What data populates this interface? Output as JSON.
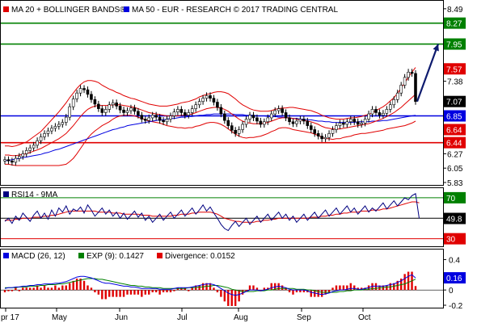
{
  "chart_data": [
    {
      "panel": "price",
      "type": "candlestick",
      "legend": [
        {
          "label": "MA 20 + BOLLINGER BANDS®",
          "color": "#e00000"
        },
        {
          "label": "MA 50 - EUR - RESEARCH © 2017 TRADING CENTRAL",
          "color": "#0000e0"
        }
      ],
      "x_ticks": [
        "pr 17",
        "May",
        "Jun",
        "Jul",
        "Aug",
        "Sep",
        "Oct"
      ],
      "ylim": [
        5.83,
        8.55
      ],
      "y_ticks": [
        "8.49",
        "7.38",
        "6.27",
        "6.05",
        "5.83"
      ],
      "levels": [
        {
          "label": "8.27",
          "value": 8.27,
          "color": "#008000"
        },
        {
          "label": "7.95",
          "value": 7.95,
          "color": "#008000"
        },
        {
          "label": "7.57",
          "value": 7.57,
          "color": "#e00000"
        },
        {
          "label": "7.07",
          "value": 7.07,
          "color": "#000000"
        },
        {
          "label": "6.85",
          "value": 6.85,
          "color": "#0000e0"
        },
        {
          "label": "6.64",
          "value": 6.64,
          "color": "#e00000"
        },
        {
          "label": "6.44",
          "value": 6.44,
          "color": "#e00000"
        }
      ],
      "horizontal_lines": [
        {
          "value": 8.27,
          "color": "#008000"
        },
        {
          "value": 7.95,
          "color": "#008000"
        },
        {
          "value": 6.85,
          "color": "#0000e0"
        },
        {
          "value": 6.44,
          "color": "#e00000"
        }
      ],
      "close": [
        6.18,
        6.16,
        6.14,
        6.2,
        6.23,
        6.27,
        6.32,
        6.36,
        6.4,
        6.47,
        6.53,
        6.58,
        6.62,
        6.66,
        6.69,
        6.72,
        6.75,
        6.83,
        6.99,
        7.11,
        7.2,
        7.27,
        7.25,
        7.18,
        7.1,
        7.03,
        6.96,
        6.9,
        6.95,
        7.02,
        7.05,
        7.0,
        6.94,
        6.9,
        6.93,
        6.97,
        6.92,
        6.86,
        6.8,
        6.78,
        6.82,
        6.86,
        6.83,
        6.78,
        6.76,
        6.8,
        6.85,
        6.91,
        6.95,
        6.9,
        6.86,
        6.9,
        6.96,
        7.02,
        7.07,
        7.12,
        7.16,
        7.12,
        7.06,
        6.98,
        6.88,
        6.78,
        6.7,
        6.63,
        6.58,
        6.64,
        6.72,
        6.8,
        6.86,
        6.82,
        6.77,
        6.72,
        6.76,
        6.82,
        6.88,
        6.93,
        6.96,
        6.9,
        6.82,
        6.76,
        6.73,
        6.77,
        6.8,
        6.77,
        6.7,
        6.64,
        6.58,
        6.54,
        6.5,
        6.52,
        6.58,
        6.64,
        6.7,
        6.74,
        6.72,
        6.76,
        6.8,
        6.76,
        6.72,
        6.74,
        6.8,
        6.88,
        6.95,
        6.9,
        6.86,
        6.89,
        6.95,
        7.02,
        7.1,
        7.2,
        7.32,
        7.44,
        7.52,
        7.5,
        7.07
      ],
      "ma20": [
        6.25,
        6.25,
        6.24,
        6.24,
        6.25,
        6.26,
        6.27,
        6.29,
        6.31,
        6.33,
        6.35,
        6.38,
        6.41,
        6.44,
        6.47,
        6.5,
        6.54,
        6.58,
        6.64,
        6.7,
        6.77,
        6.84,
        6.9,
        6.95,
        6.98,
        7.0,
        7.01,
        7.01,
        7.01,
        7.01,
        7.02,
        7.02,
        7.02,
        7.01,
        7.0,
        6.99,
        6.98,
        6.96,
        6.94,
        6.92,
        6.9,
        6.89,
        6.88,
        6.87,
        6.86,
        6.85,
        6.85,
        6.85,
        6.85,
        6.86,
        6.86,
        6.87,
        6.88,
        6.9,
        6.92,
        6.94,
        6.96,
        6.97,
        6.98,
        6.98,
        6.97,
        6.95,
        6.92,
        6.88,
        6.84,
        6.8,
        6.77,
        6.75,
        6.74,
        6.73,
        6.73,
        6.73,
        6.74,
        6.75,
        6.77,
        6.79,
        6.81,
        6.82,
        6.82,
        6.82,
        6.81,
        6.8,
        6.79,
        6.78,
        6.77,
        6.76,
        6.74,
        6.72,
        6.69,
        6.67,
        6.66,
        6.65,
        6.65,
        6.65,
        6.66,
        6.67,
        6.68,
        6.69,
        6.7,
        6.71,
        6.72,
        6.73,
        6.75,
        6.77,
        6.79,
        6.81,
        6.84,
        6.87,
        6.9,
        6.94,
        6.98,
        7.03,
        7.08,
        7.13,
        7.18
      ],
      "bb_width": [
        0.14,
        0.14,
        0.14,
        0.15,
        0.16,
        0.17,
        0.18,
        0.2,
        0.22,
        0.24,
        0.26,
        0.29,
        0.32,
        0.35,
        0.38,
        0.41,
        0.44,
        0.47,
        0.49,
        0.5,
        0.5,
        0.49,
        0.47,
        0.44,
        0.41,
        0.38,
        0.35,
        0.31,
        0.28,
        0.25,
        0.22,
        0.19,
        0.17,
        0.15,
        0.14,
        0.13,
        0.13,
        0.13,
        0.13,
        0.13,
        0.13,
        0.13,
        0.13,
        0.13,
        0.14,
        0.15,
        0.16,
        0.17,
        0.18,
        0.19,
        0.2,
        0.2,
        0.21,
        0.21,
        0.22,
        0.22,
        0.22,
        0.22,
        0.23,
        0.24,
        0.25,
        0.26,
        0.27,
        0.27,
        0.27,
        0.26,
        0.25,
        0.24,
        0.22,
        0.21,
        0.2,
        0.19,
        0.18,
        0.17,
        0.16,
        0.16,
        0.15,
        0.15,
        0.15,
        0.16,
        0.17,
        0.17,
        0.17,
        0.17,
        0.17,
        0.17,
        0.17,
        0.17,
        0.17,
        0.17,
        0.16,
        0.16,
        0.15,
        0.15,
        0.14,
        0.14,
        0.14,
        0.13,
        0.13,
        0.13,
        0.14,
        0.14,
        0.15,
        0.16,
        0.17,
        0.18,
        0.19,
        0.21,
        0.23,
        0.26,
        0.29,
        0.33,
        0.36,
        0.39,
        0.41
      ],
      "ma50": [
        6.16,
        6.17,
        6.18,
        6.19,
        6.2,
        6.21,
        6.22,
        6.23,
        6.24,
        6.25,
        6.26,
        6.28,
        6.29,
        6.31,
        6.33,
        6.34,
        6.36,
        6.38,
        6.4,
        6.42,
        6.44,
        6.46,
        6.48,
        6.5,
        6.52,
        6.54,
        6.56,
        6.58,
        6.6,
        6.62,
        6.64,
        6.65,
        6.67,
        6.68,
        6.7,
        6.71,
        6.72,
        6.73,
        6.74,
        6.75,
        6.76,
        6.77,
        6.78,
        6.79,
        6.79,
        6.8,
        6.81,
        6.81,
        6.82,
        6.83,
        6.83,
        6.84,
        6.84,
        6.85,
        6.86,
        6.86,
        6.87,
        6.87,
        6.88,
        6.88,
        6.88,
        6.88,
        6.88,
        6.88,
        6.87,
        6.87,
        6.87,
        6.86,
        6.86,
        6.86,
        6.85,
        6.85,
        6.85,
        6.84,
        6.84,
        6.84,
        6.83,
        6.83,
        6.82,
        6.82,
        6.81,
        6.81,
        6.8,
        6.8,
        6.79,
        6.79,
        6.78,
        6.77,
        6.77,
        6.76,
        6.76,
        6.75,
        6.75,
        6.75,
        6.75,
        6.75,
        6.75,
        6.75,
        6.76,
        6.76,
        6.76,
        6.76,
        6.77,
        6.77,
        6.77,
        6.78,
        6.78,
        6.79,
        6.8,
        6.81,
        6.82,
        6.83,
        6.84,
        6.85,
        6.86
      ],
      "projection": {
        "from": 7.07,
        "to": 7.95
      }
    },
    {
      "panel": "rsi",
      "type": "line",
      "legend": [
        {
          "label": "RSI14 - 9MA",
          "color": "#000080"
        }
      ],
      "ylim": [
        25,
        77
      ],
      "levels": [
        {
          "label": "70",
          "value": 70,
          "color": "#008000"
        },
        {
          "label": "49.8",
          "value": 49.8,
          "color": "#000000"
        },
        {
          "label": "30",
          "value": 30,
          "color": "#e00000"
        }
      ],
      "horizontal_lines": [
        {
          "value": 70,
          "color": "#008000"
        },
        {
          "value": 50,
          "color": "#000000"
        },
        {
          "value": 30,
          "color": "#e00000"
        }
      ],
      "rsi": [
        47,
        50,
        45,
        52,
        48,
        55,
        51,
        47,
        53,
        57,
        50,
        55,
        49,
        58,
        52,
        60,
        56,
        62,
        54,
        59,
        57,
        61,
        55,
        63,
        58,
        52,
        56,
        60,
        54,
        58,
        52,
        56,
        50,
        55,
        49,
        53,
        57,
        51,
        55,
        48,
        52,
        46,
        50,
        54,
        48,
        52,
        56,
        50,
        54,
        58,
        52,
        56,
        60,
        54,
        58,
        63,
        57,
        61,
        55,
        50,
        44,
        40,
        38,
        43,
        47,
        42,
        46,
        50,
        44,
        48,
        52,
        46,
        50,
        54,
        48,
        52,
        56,
        50,
        54,
        48,
        52,
        46,
        50,
        54,
        48,
        52,
        56,
        50,
        54,
        58,
        52,
        56,
        60,
        54,
        58,
        62,
        56,
        60,
        54,
        58,
        62,
        56,
        60,
        57,
        61,
        65,
        59,
        63,
        67,
        62,
        66,
        70,
        68,
        72,
        74,
        49.8
      ],
      "rsi_ma": [
        48,
        48,
        48,
        49,
        49,
        50,
        50,
        50,
        51,
        51,
        51,
        52,
        52,
        53,
        53,
        54,
        55,
        56,
        57,
        57,
        57,
        57,
        57,
        57,
        57,
        57,
        56,
        56,
        56,
        56,
        55,
        55,
        55,
        54,
        54,
        54,
        54,
        54,
        53,
        53,
        53,
        52,
        52,
        52,
        52,
        52,
        52,
        53,
        53,
        54,
        54,
        54,
        55,
        55,
        56,
        56,
        56,
        56,
        55,
        54,
        52,
        50,
        49,
        48,
        47,
        47,
        46,
        46,
        46,
        46,
        47,
        47,
        48,
        48,
        49,
        49,
        50,
        50,
        50,
        50,
        50,
        50,
        50,
        50,
        50,
        51,
        51,
        51,
        52,
        52,
        53,
        53,
        54,
        54,
        55,
        55,
        56,
        56,
        56,
        57,
        57,
        57,
        58,
        58,
        58,
        59,
        59,
        60,
        61,
        62,
        63,
        64,
        65,
        66,
        66,
        65
      ]
    },
    {
      "panel": "macd",
      "type": "line",
      "legend": [
        {
          "label": "MACD (26, 12)",
          "color": "#0000e0"
        },
        {
          "label": "EXP (9): 0.1427",
          "color": "#008000"
        },
        {
          "label": "Divergence: 0.0152",
          "color": "#e00000"
        }
      ],
      "ylim": [
        -0.2,
        0.5
      ],
      "y_ticks": [
        "0.4",
        "0.2",
        "0",
        "-0.2"
      ],
      "levels": [
        {
          "label": "0.16",
          "value": 0.16,
          "color": "#0000e0"
        }
      ],
      "macd": [
        0.02,
        0.03,
        0.03,
        0.04,
        0.04,
        0.05,
        0.05,
        0.06,
        0.06,
        0.07,
        0.07,
        0.08,
        0.08,
        0.08,
        0.09,
        0.09,
        0.1,
        0.11,
        0.13,
        0.15,
        0.17,
        0.18,
        0.18,
        0.17,
        0.16,
        0.14,
        0.12,
        0.1,
        0.09,
        0.09,
        0.08,
        0.07,
        0.06,
        0.05,
        0.05,
        0.04,
        0.04,
        0.03,
        0.02,
        0.02,
        0.02,
        0.02,
        0.02,
        0.01,
        0.01,
        0.01,
        0.01,
        0.02,
        0.03,
        0.03,
        0.03,
        0.03,
        0.04,
        0.05,
        0.06,
        0.07,
        0.08,
        0.08,
        0.07,
        0.05,
        0.02,
        -0.01,
        -0.04,
        -0.06,
        -0.07,
        -0.06,
        -0.04,
        -0.02,
        0.0,
        0.0,
        0.0,
        -0.01,
        0.0,
        0.01,
        0.03,
        0.04,
        0.05,
        0.04,
        0.03,
        0.01,
        0.0,
        0.0,
        0.0,
        0.0,
        -0.01,
        -0.03,
        -0.04,
        -0.05,
        -0.06,
        -0.05,
        -0.04,
        -0.02,
        -0.01,
        0.0,
        0.0,
        0.01,
        0.02,
        0.02,
        0.01,
        0.01,
        0.02,
        0.03,
        0.05,
        0.05,
        0.05,
        0.05,
        0.06,
        0.07,
        0.08,
        0.1,
        0.12,
        0.15,
        0.18,
        0.2,
        0.16
      ],
      "signal": [
        0.03,
        0.03,
        0.03,
        0.03,
        0.04,
        0.04,
        0.04,
        0.05,
        0.05,
        0.05,
        0.06,
        0.06,
        0.07,
        0.07,
        0.07,
        0.08,
        0.08,
        0.09,
        0.1,
        0.11,
        0.12,
        0.13,
        0.14,
        0.15,
        0.15,
        0.15,
        0.14,
        0.14,
        0.13,
        0.12,
        0.11,
        0.1,
        0.09,
        0.08,
        0.07,
        0.06,
        0.06,
        0.05,
        0.05,
        0.04,
        0.04,
        0.03,
        0.03,
        0.03,
        0.02,
        0.02,
        0.02,
        0.02,
        0.02,
        0.02,
        0.02,
        0.03,
        0.03,
        0.03,
        0.04,
        0.04,
        0.05,
        0.05,
        0.06,
        0.06,
        0.05,
        0.04,
        0.03,
        0.01,
        0.0,
        -0.01,
        -0.02,
        -0.02,
        -0.02,
        -0.02,
        -0.01,
        -0.01,
        -0.01,
        0.0,
        0.0,
        0.01,
        0.02,
        0.02,
        0.02,
        0.02,
        0.02,
        0.01,
        0.01,
        0.01,
        0.0,
        0.0,
        -0.01,
        -0.02,
        -0.03,
        -0.03,
        -0.03,
        -0.03,
        -0.03,
        -0.02,
        -0.02,
        -0.01,
        -0.01,
        0.0,
        0.0,
        0.0,
        0.01,
        0.01,
        0.02,
        0.02,
        0.03,
        0.03,
        0.04,
        0.04,
        0.05,
        0.06,
        0.07,
        0.08,
        0.1,
        0.12,
        0.1427
      ],
      "divergence_histogram": true
    }
  ]
}
